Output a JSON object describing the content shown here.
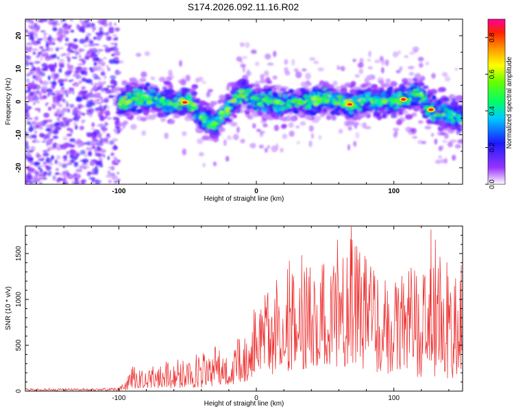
{
  "chart_data": [
    {
      "type": "heatmap",
      "title": "S174.2026.092.11.16.R02",
      "xlabel": "Height of straight line (km)",
      "ylabel": "Frequency (Hz)",
      "xlim": [
        -168,
        150
      ],
      "ylim": [
        -25,
        25
      ],
      "xticks": [
        -100,
        0,
        100
      ],
      "yticks": [
        20,
        10,
        0,
        -10,
        -20
      ],
      "noise_region_x": [
        -168,
        -100
      ],
      "ridge": {
        "x": [
          -100,
          -90,
          -80,
          -70,
          -60,
          -50,
          -45,
          -40,
          -35,
          -30,
          -25,
          -20,
          -15,
          -10,
          -5,
          0,
          10,
          20,
          30,
          40,
          50,
          60,
          70,
          80,
          90,
          100,
          110,
          115,
          120,
          125,
          130,
          140,
          150
        ],
        "frequency": [
          -1,
          1,
          1,
          0,
          -1,
          0,
          -2,
          -5,
          -6,
          -7,
          -4,
          -2,
          1,
          3,
          2,
          0,
          0,
          -1,
          0,
          0,
          1,
          0,
          -1,
          1,
          0,
          0,
          1,
          3,
          2,
          -2,
          -3,
          -4,
          -5
        ],
        "peak_amplitude_x": [
          -52,
          68,
          107,
          127
        ]
      },
      "colorbar": {
        "label": "Normalized spectral amplitude",
        "range": [
          0,
          0.9
        ],
        "ticks": [
          0,
          0.2,
          0.4,
          0.6,
          0.8
        ],
        "tick_labels": [
          "0.0",
          "0.2",
          "0.4",
          "0.6",
          "0.8"
        ]
      }
    },
    {
      "type": "line",
      "xlabel": "Height of straight line (km)",
      "ylabel": "SNR (10 * v/v)",
      "xlim": [
        -168,
        150
      ],
      "ylim": [
        0,
        1800
      ],
      "xticks": [
        -100,
        0,
        100
      ],
      "yticks": [
        0,
        500,
        1000,
        1500
      ],
      "series": [
        {
          "name": "SNR",
          "color": "#ee3333",
          "envelope_x": [
            -168,
            -102,
            -95,
            -90,
            -80,
            -70,
            -60,
            -50,
            -40,
            -30,
            -20,
            -10,
            0,
            10,
            20,
            30,
            40,
            50,
            60,
            70,
            80,
            90,
            100,
            110,
            120,
            130,
            140,
            150
          ],
          "envelope_min": [
            5,
            5,
            10,
            30,
            40,
            30,
            35,
            40,
            40,
            60,
            70,
            90,
            150,
            180,
            200,
            230,
            250,
            260,
            250,
            230,
            240,
            200,
            180,
            160,
            150,
            140,
            130,
            120
          ],
          "envelope_max": [
            30,
            35,
            100,
            280,
            220,
            320,
            330,
            420,
            400,
            520,
            600,
            700,
            950,
            1200,
            1350,
            1300,
            1400,
            1450,
            1500,
            1700,
            1450,
            1350,
            1400,
            1300,
            1500,
            1700,
            1400,
            1300
          ],
          "spikes": [
            [
              69,
              1790
            ],
            [
              59,
              1650
            ],
            [
              127,
              1760
            ],
            [
              24,
              1420
            ],
            [
              33,
              1480
            ],
            [
              149,
              1370
            ]
          ]
        }
      ]
    }
  ]
}
